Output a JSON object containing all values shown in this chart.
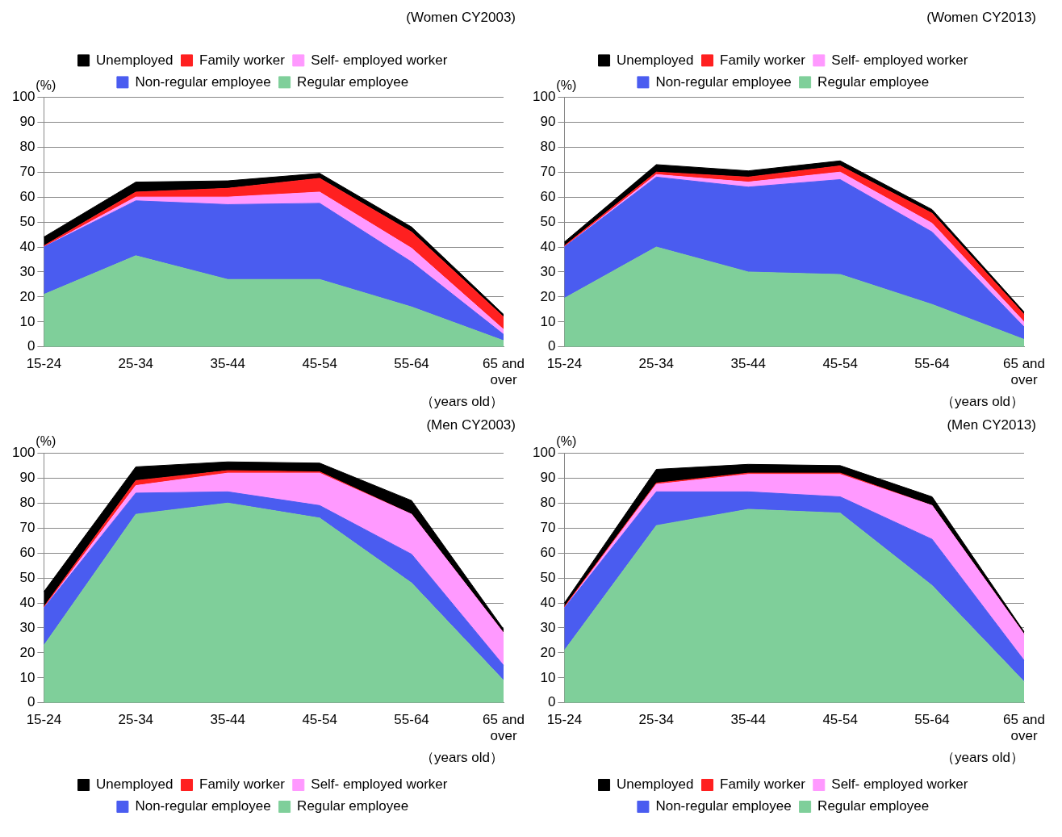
{
  "chart_data": [
    {
      "type": "area",
      "title": "(Women CY2003)",
      "ylabel": "(%)",
      "xlabel": "（years old）",
      "categories": [
        "15-24",
        "25-34",
        "35-44",
        "45-54",
        "55-64",
        "65 and over"
      ],
      "stacked": true,
      "ylim": [
        0,
        100
      ],
      "yticks": [
        0,
        10,
        20,
        30,
        40,
        50,
        60,
        70,
        80,
        90,
        100
      ],
      "grid": "y",
      "legend": "top",
      "series": [
        {
          "name": "Regular employee",
          "color": "#7fcf9a",
          "values": [
            21,
            36.5,
            27,
            27,
            16,
            2.5
          ]
        },
        {
          "name": "Non-regular employee",
          "color": "#4a5cf0",
          "values": [
            19,
            22,
            30,
            30.5,
            18,
            2.5
          ]
        },
        {
          "name": "Self- employed worker",
          "color": "#ff99ff",
          "values": [
            0,
            1.5,
            3,
            4.5,
            5.5,
            2
          ]
        },
        {
          "name": "Family worker",
          "color": "#ff2020",
          "values": [
            0.5,
            2,
            3.5,
            5.5,
            6.5,
            5
          ]
        },
        {
          "name": "Unemployed",
          "color": "#000000",
          "values": [
            3.5,
            4,
            3,
            2,
            2,
            1
          ]
        }
      ]
    },
    {
      "type": "area",
      "title": "(Women CY2013)",
      "ylabel": "(%)",
      "xlabel": "（years old）",
      "categories": [
        "15-24",
        "25-34",
        "35-44",
        "45-54",
        "55-64",
        "65 and over"
      ],
      "stacked": true,
      "ylim": [
        0,
        100
      ],
      "yticks": [
        0,
        10,
        20,
        30,
        40,
        50,
        60,
        70,
        80,
        90,
        100
      ],
      "grid": "y",
      "legend": "top",
      "series": [
        {
          "name": "Regular employee",
          "color": "#7fcf9a",
          "values": [
            19.5,
            40,
            30,
            29,
            17,
            3
          ]
        },
        {
          "name": "Non-regular employee",
          "color": "#4a5cf0",
          "values": [
            20.5,
            28,
            34,
            38,
            29,
            5
          ]
        },
        {
          "name": "Self- employed worker",
          "color": "#ff99ff",
          "values": [
            0,
            1,
            2,
            3,
            3.5,
            2
          ]
        },
        {
          "name": "Family worker",
          "color": "#ff2020",
          "values": [
            0.5,
            1,
            2,
            2.5,
            4,
            3
          ]
        },
        {
          "name": "Unemployed",
          "color": "#000000",
          "values": [
            1.5,
            3,
            2.5,
            2,
            1.5,
            1
          ]
        }
      ]
    },
    {
      "type": "area",
      "title": "(Men CY2003)",
      "ylabel": "(%)",
      "xlabel": "（years old）",
      "categories": [
        "15-24",
        "25-34",
        "35-44",
        "45-54",
        "55-64",
        "65 and over"
      ],
      "stacked": true,
      "ylim": [
        0,
        100
      ],
      "yticks": [
        0,
        10,
        20,
        30,
        40,
        50,
        60,
        70,
        80,
        90,
        100
      ],
      "grid": "y",
      "legend": "bottom",
      "series": [
        {
          "name": "Regular employee",
          "color": "#7fcf9a",
          "values": [
            23,
            75.5,
            80,
            74,
            48,
            9
          ]
        },
        {
          "name": "Non-regular employee",
          "color": "#4a5cf0",
          "values": [
            15,
            8.5,
            4.5,
            5,
            11.5,
            6
          ]
        },
        {
          "name": "Self- employed worker",
          "color": "#ff99ff",
          "values": [
            0,
            3,
            7.5,
            13,
            16,
            13
          ]
        },
        {
          "name": "Family worker",
          "color": "#ff2020",
          "values": [
            0.5,
            2,
            1,
            0.5,
            0,
            0
          ]
        },
        {
          "name": "Unemployed",
          "color": "#000000",
          "values": [
            6,
            5.5,
            3.5,
            3.5,
            5.5,
            1.5
          ]
        }
      ]
    },
    {
      "type": "area",
      "title": "(Men CY2013)",
      "ylabel": "(%)",
      "xlabel": "（years old）",
      "categories": [
        "15-24",
        "25-34",
        "35-44",
        "45-54",
        "55-64",
        "65 and over"
      ],
      "stacked": true,
      "ylim": [
        0,
        100
      ],
      "yticks": [
        0,
        10,
        20,
        30,
        40,
        50,
        60,
        70,
        80,
        90,
        100
      ],
      "grid": "y",
      "legend": "bottom",
      "series": [
        {
          "name": "Regular employee",
          "color": "#7fcf9a",
          "values": [
            21,
            71,
            77.5,
            76,
            47,
            8.5
          ]
        },
        {
          "name": "Non-regular employee",
          "color": "#4a5cf0",
          "values": [
            17,
            13.5,
            7,
            6.5,
            18.5,
            8.5
          ]
        },
        {
          "name": "Self- employed worker",
          "color": "#ff99ff",
          "values": [
            0,
            3,
            7,
            9,
            13.5,
            10.5
          ]
        },
        {
          "name": "Family worker",
          "color": "#ff2020",
          "values": [
            0.5,
            0.5,
            0.5,
            0.5,
            0,
            0
          ]
        },
        {
          "name": "Unemployed",
          "color": "#000000",
          "values": [
            1.5,
            5.5,
            3.5,
            3,
            3.5,
            1
          ]
        }
      ]
    }
  ]
}
